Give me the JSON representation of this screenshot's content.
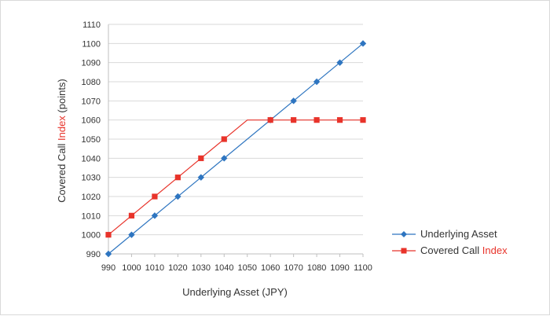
{
  "chart_data": {
    "type": "line",
    "title": "",
    "xlabel": "Underlying Asset (JPY)",
    "ylabel_parts": [
      "Covered Call ",
      "Index",
      " (points)"
    ],
    "xlim": [
      990,
      1100
    ],
    "ylim": [
      990,
      1110
    ],
    "x_ticks": [
      990,
      1000,
      1010,
      1020,
      1030,
      1040,
      1050,
      1060,
      1070,
      1080,
      1090,
      1100
    ],
    "y_ticks": [
      990,
      1000,
      1010,
      1020,
      1030,
      1040,
      1050,
      1060,
      1070,
      1080,
      1090,
      1100,
      1110
    ],
    "grid": true,
    "legend_position": "right",
    "series": [
      {
        "name": "Underlying Asset",
        "name_parts": [
          "Underlying Asset"
        ],
        "color": "#2e75c0",
        "marker": "diamond",
        "line_x": [
          990,
          1100
        ],
        "line_y": [
          990,
          1100
        ],
        "x": [
          990,
          1000,
          1010,
          1020,
          1030,
          1040,
          1060,
          1070,
          1080,
          1090,
          1100
        ],
        "y": [
          990,
          1000,
          1010,
          1020,
          1030,
          1040,
          1060,
          1070,
          1080,
          1090,
          1100
        ]
      },
      {
        "name": "Covered Call Index",
        "name_parts": [
          "Covered Call ",
          "Index"
        ],
        "color": "#e8332a",
        "marker": "square",
        "line_x": [
          990,
          1050,
          1100
        ],
        "line_y": [
          1000,
          1060,
          1060
        ],
        "x": [
          990,
          1000,
          1010,
          1020,
          1030,
          1040,
          1060,
          1070,
          1080,
          1090,
          1100
        ],
        "y": [
          1000,
          1010,
          1020,
          1030,
          1040,
          1050,
          1060,
          1060,
          1060,
          1060,
          1060
        ]
      }
    ]
  }
}
